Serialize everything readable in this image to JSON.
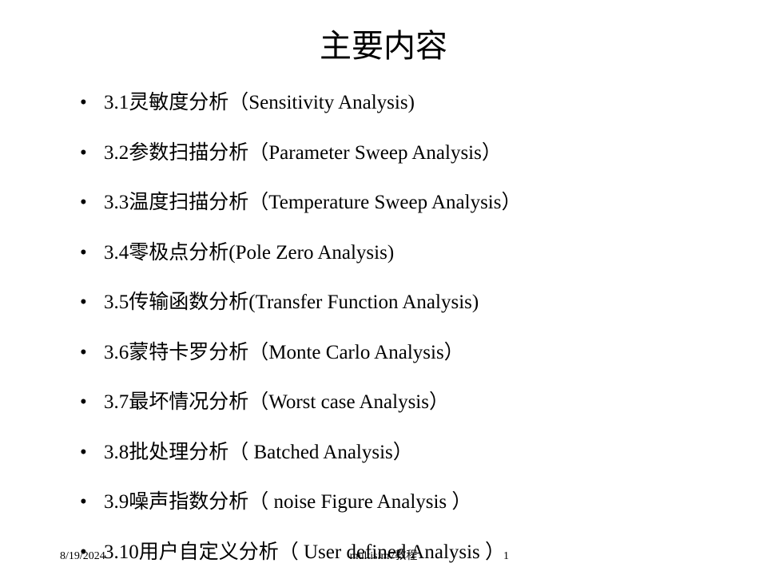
{
  "title": "主要内容",
  "items": [
    "3.1灵敏度分析（Sensitivity Analysis)",
    "3.2参数扫描分析（Parameter Sweep Analysis）",
    "3.3温度扫描分析（Temperature Sweep Analysis）",
    "3.4零极点分析(Pole Zero Analysis)",
    "3.5传输函数分析(Transfer Function Analysis)",
    "3.6蒙特卡罗分析（Monte Carlo Analysis）",
    "3.7最坏情况分析（Worst case Analysis）",
    "3.8批处理分析（ Batched Analysis）",
    "3.9噪声指数分析（ noise Figure Analysis ）",
    "3.10用户自定义分析（ User defined Analysis ）"
  ],
  "footer": {
    "date": "8/19/2024",
    "center": "multisim7教程",
    "page": "1"
  },
  "styles": {
    "background_color": "#ffffff",
    "text_color": "#000000",
    "title_fontsize": 40,
    "item_fontsize": 25,
    "footer_fontsize": 14
  }
}
